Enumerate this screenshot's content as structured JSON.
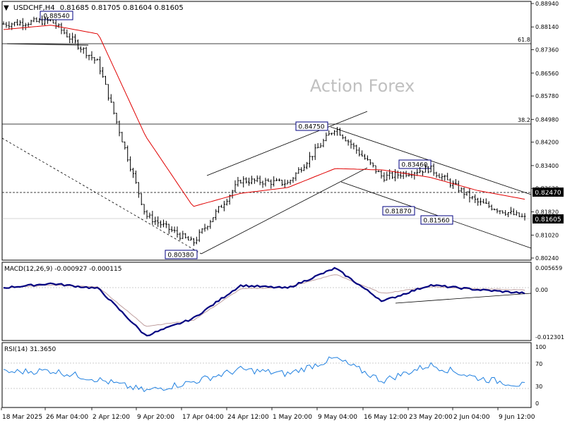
{
  "header": {
    "symbol_label": "USDCHF,H4",
    "ohlc": "0.81685 0.81705 0.81604 0.81605"
  },
  "watermark": "Action Forex",
  "colors": {
    "price_bars": "#000000",
    "ma_line": "#e00000",
    "macd_line": "#000080",
    "signal_line": "#c0a0a0",
    "rsi_line": "#2080e0",
    "label_border": "#000080",
    "current_price_bg": "#000000"
  },
  "chart_data": [
    {
      "type": "candlestick",
      "pane": "price",
      "x": [
        "18 Mar 2025",
        "26 Mar 04:00",
        "2 Apr 12:00",
        "9 Apr 20:00",
        "17 Apr 04:00",
        "24 Apr 12:00",
        "1 May 20:00",
        "9 May 04:00",
        "16 May 12:00",
        "23 May 20:00",
        "2 Jun 04:00",
        "9 Jun 12:00"
      ],
      "close": [
        0.8824,
        0.8835,
        0.869,
        0.817,
        0.8075,
        0.829,
        0.828,
        0.847,
        0.83,
        0.833,
        0.8215,
        0.816
      ],
      "ma_values": [
        0.8805,
        0.882,
        0.879,
        0.844,
        0.82,
        0.8245,
        0.8265,
        0.833,
        0.8325,
        0.83,
        0.8255,
        0.8225
      ],
      "ma_color": "red",
      "y_ticks": [
        "0.88940",
        "0.88140",
        "0.87360",
        "0.86560",
        "0.85780",
        "0.84980",
        "0.84200",
        "0.83400",
        "0.82620",
        "0.81820",
        "0.81020",
        "0.80240"
      ],
      "ylim": [
        0.8024,
        0.8894
      ],
      "horizontal_levels": [
        {
          "label": "61.8",
          "value": 0.8757
        },
        {
          "label": "38.2",
          "value": 0.8475
        },
        {
          "label": "0.82470",
          "value": 0.8247
        }
      ],
      "price_labels": [
        "0.88540",
        "0.84750",
        "0.83460",
        "0.81870",
        "0.81560",
        "0.80380"
      ],
      "current_price": "0.81605",
      "grid": false
    },
    {
      "type": "line",
      "pane": "macd",
      "title": "MACD(12,26,9) -0.000927 -0.000115",
      "series": [
        {
          "name": "MACD",
          "values": [
            0.0005,
            0.0016,
            0.0003,
            -0.012,
            -0.0075,
            0.0011,
            0.0004,
            0.0056,
            -0.003,
            0.0012,
            0.0,
            -0.0009
          ]
        },
        {
          "name": "Signal",
          "values": [
            0.0004,
            0.0012,
            0.0007,
            -0.0095,
            -0.008,
            0.0002,
            0.0006,
            0.004,
            -0.001,
            0.0008,
            0.0002,
            -0.0001
          ]
        }
      ],
      "y_ticks": [
        "0.005659",
        "0.00",
        "-0.012301"
      ],
      "ylim": [
        -0.012301,
        0.005659
      ]
    },
    {
      "type": "line",
      "pane": "rsi",
      "title": "RSI(14) 31.3650",
      "series": [
        {
          "name": "RSI",
          "values": [
            55,
            58,
            42,
            22,
            38,
            60,
            52,
            80,
            40,
            68,
            45,
            31.365
          ]
        }
      ],
      "y_ticks": [
        "100",
        "70",
        "30",
        "0"
      ],
      "levels": [
        70,
        30
      ],
      "ylim": [
        0,
        100
      ]
    }
  ],
  "x_axis_labels": [
    "18 Mar 2025",
    "26 Mar 04:00",
    "2 Apr 12:00",
    "9 Apr 20:00",
    "17 Apr 04:00",
    "24 Apr 12:00",
    "1 May 20:00",
    "9 May 04:00",
    "16 May 12:00",
    "23 May 20:00",
    "2 Jun 04:00",
    "9 Jun 12:00"
  ]
}
